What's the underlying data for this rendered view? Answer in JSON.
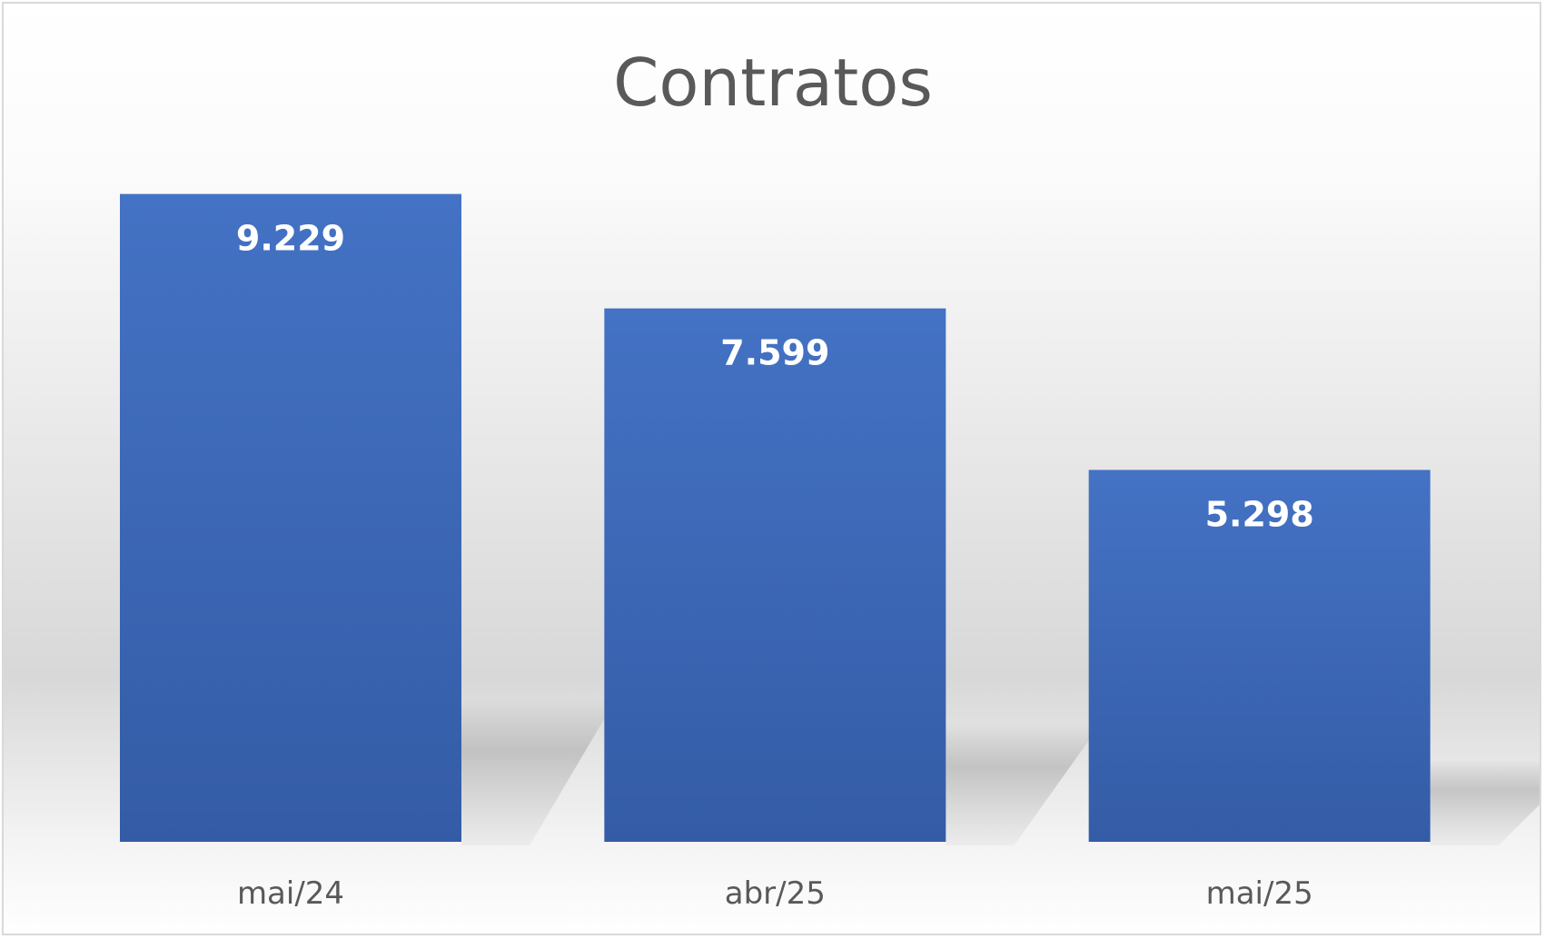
{
  "chart_data": {
    "type": "bar",
    "title": "Contratos",
    "categories": [
      "mai/24",
      "abr/25",
      "mai/25"
    ],
    "values": [
      9229,
      7599,
      5298
    ],
    "value_labels": [
      "9.229",
      "7.599",
      "5.298"
    ],
    "xlabel": "",
    "ylabel": "",
    "ylim": [
      0,
      10000
    ],
    "grid": false,
    "legend": "none",
    "colors": {
      "bar_top": "#4472C4",
      "bar_bottom": "#345CA6",
      "background_top": "#FFFFFF",
      "background_mid": "#D9D9D9",
      "title": "#595959",
      "tick": "#595959",
      "data_label": "#FFFFFF"
    }
  }
}
